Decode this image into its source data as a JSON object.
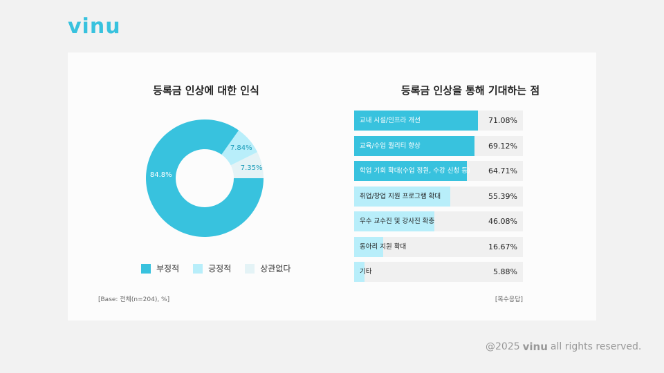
{
  "brand": {
    "logo": "vinu",
    "color": "#38c2de"
  },
  "footer": {
    "year": "@2025",
    "logo": "vinu",
    "text": "all rights reserved."
  },
  "chart_data": [
    {
      "type": "pie",
      "variant": "donut",
      "title": "등록금 인상에 대한 인식",
      "categories": [
        "부정적",
        "긍정적",
        "상관없다"
      ],
      "values": [
        84.8,
        7.84,
        7.35
      ],
      "labels": [
        "84.8%",
        "7.84%",
        "7.35%"
      ],
      "colors": [
        "#38c2de",
        "#b8eefa",
        "#e4f3f6"
      ],
      "legend_position": "bottom",
      "note": "[Base: 전체(n=204), %]"
    },
    {
      "type": "bar",
      "orientation": "horizontal",
      "title": "등록금 인상을 통해 기대하는 점",
      "categories": [
        "교내 시설/인프라 개선",
        "교육/수업 퀄리티 향상",
        "학업 기회 확대(수업 정원, 수강 신청 등)",
        "취업/창업 지원 프로그램 확대",
        "우수 교수진 및 강사진 확충",
        "동아리 지원 확대",
        "기타"
      ],
      "values": [
        71.08,
        69.12,
        64.71,
        55.39,
        46.08,
        16.67,
        5.88
      ],
      "labels": [
        "71.08%",
        "69.12%",
        "64.71%",
        "55.39%",
        "46.08%",
        "16.67%",
        "5.88%"
      ],
      "colors": {
        "top": "#38c2de",
        "rest": "#b8eefa",
        "track": "#f0f0f0"
      },
      "note": "[복수응답]"
    }
  ]
}
